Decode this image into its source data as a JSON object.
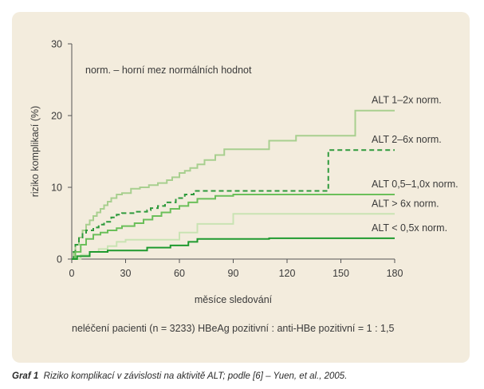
{
  "chart_data": {
    "type": "line",
    "step": true,
    "title": "",
    "legend_note": "norm. – horní mez normálních hodnot",
    "xlabel": "měsíce sledování",
    "ylabel": "riziko komplikací (%)",
    "xlim": [
      0,
      180
    ],
    "ylim": [
      0,
      30
    ],
    "xticks": [
      0,
      30,
      60,
      90,
      120,
      150,
      180
    ],
    "yticks": [
      0,
      10,
      20,
      30
    ],
    "footnote": "neléčení pacienti (n = 3233) HBeAg pozitivní : anti-HBe pozitivní = 1 : 1,5",
    "grid": false,
    "series": [
      {
        "name": "ALT 1–2x norm.",
        "color": "#a8cf8f",
        "dashed": false,
        "x": [
          0,
          1,
          2,
          4,
          6,
          8,
          10,
          12,
          14,
          16,
          18,
          20,
          22,
          25,
          28,
          33,
          38,
          43,
          48,
          53,
          56,
          60,
          63,
          66,
          70,
          74,
          80,
          85,
          110,
          125,
          158,
          180
        ],
        "y": [
          0,
          1,
          2,
          3,
          4,
          4.8,
          5.4,
          6,
          6.5,
          7,
          7.5,
          8,
          8.5,
          9,
          9.2,
          9.8,
          10,
          10.3,
          10.6,
          11,
          11.4,
          12,
          12.3,
          12.7,
          13.2,
          13.8,
          14.5,
          15.3,
          16.5,
          17.2,
          20.7,
          20.7
        ]
      },
      {
        "name": "ALT 2–6x norm.",
        "color": "#2e9a3c",
        "dashed": true,
        "x": [
          0,
          1,
          2,
          4,
          6,
          8,
          12,
          15,
          18,
          22,
          25,
          28,
          35,
          42,
          44,
          48,
          52,
          58,
          63,
          68,
          80,
          143,
          180
        ],
        "y": [
          0,
          1,
          2,
          3,
          3.5,
          4,
          4.4,
          4.8,
          5.2,
          5.8,
          6.2,
          6.4,
          6.6,
          6.8,
          7.1,
          7.4,
          7.9,
          8.5,
          9,
          9.5,
          9.5,
          15.2,
          15.2
        ]
      },
      {
        "name": "ALT 0,5–1,0x norm.",
        "color": "#6bbf5a",
        "dashed": false,
        "x": [
          0,
          2,
          5,
          8,
          12,
          16,
          20,
          25,
          28,
          35,
          40,
          45,
          50,
          55,
          60,
          65,
          70,
          80,
          90,
          180
        ],
        "y": [
          0,
          1,
          2,
          2.8,
          3.4,
          3.7,
          4,
          4.3,
          4.6,
          5,
          5.5,
          6,
          6.5,
          7,
          7.4,
          7.9,
          8.4,
          8.8,
          9,
          9
        ]
      },
      {
        "name": "ALT > 6x norm.",
        "color": "#c9e3b3",
        "dashed": false,
        "x": [
          0,
          5,
          10,
          15,
          20,
          25,
          30,
          60,
          70,
          90,
          180
        ],
        "y": [
          0,
          0.6,
          1,
          1.4,
          1.8,
          2.4,
          2.7,
          3.7,
          4.9,
          6.3,
          6.3
        ]
      },
      {
        "name": "ALT < 0,5x norm.",
        "color": "#1f9a2f",
        "dashed": false,
        "x": [
          0,
          3,
          10,
          20,
          42,
          55,
          65,
          70,
          110,
          180
        ],
        "y": [
          0,
          0.4,
          1,
          1.2,
          1.6,
          1.9,
          2.4,
          2.8,
          2.9,
          2.9
        ]
      }
    ]
  },
  "caption": {
    "label": "Graf 1",
    "text": "Riziko komplikací v závislosti na aktivitě ALT; podle [6] – Yuen, et al., 2005."
  }
}
